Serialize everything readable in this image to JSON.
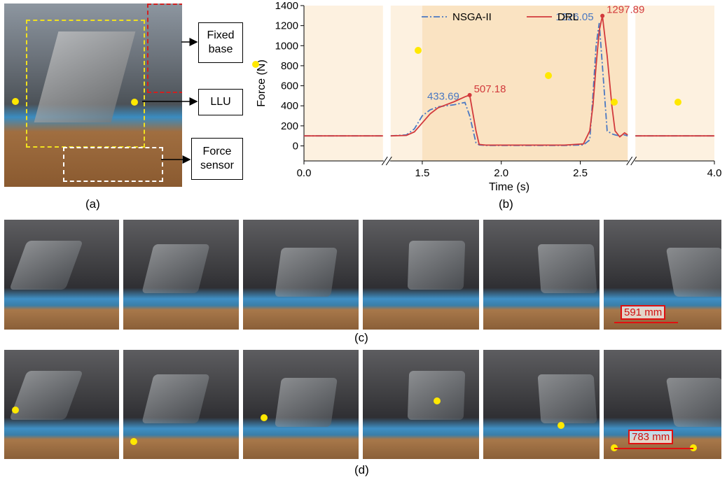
{
  "figure": {
    "callouts": [
      "Fixed base",
      "LLU",
      "Force sensor"
    ],
    "panel_labels": [
      "(a)",
      "(b)",
      "(c)",
      "(d)"
    ],
    "distance_labels": [
      "591 mm",
      "783 mm"
    ]
  },
  "chart_data": {
    "type": "line",
    "xlabel": "Time (s)",
    "ylabel": "Force (N)",
    "xlim": [
      0,
      4.0
    ],
    "xbreaks": [
      [
        0,
        0.5
      ],
      [
        1.3,
        2.8
      ],
      [
        3.5,
        4.0
      ]
    ],
    "highlight_xlim": [
      1.5,
      2.8
    ],
    "ylim": [
      -150,
      1400
    ],
    "xticks": [
      {
        "value": 0,
        "label": "0.0"
      },
      1.5,
      {
        "value": 2,
        "label": "2.0"
      },
      2.5,
      {
        "value": 4,
        "label": "4.0"
      }
    ],
    "yticks": [
      0,
      200,
      400,
      600,
      800,
      1000,
      1200,
      1400
    ],
    "legend": "top",
    "x": [
      0,
      0.5,
      0.9,
      1.3,
      1.4,
      1.45,
      1.5,
      1.55,
      1.6,
      1.7,
      1.77,
      1.8,
      1.84,
      1.86,
      1.9,
      2.0,
      2.4,
      2.52,
      2.56,
      2.58,
      2.6,
      2.62,
      2.64,
      2.67,
      2.7,
      2.72,
      2.75,
      2.78,
      2.8,
      3.2,
      3.5,
      4.0
    ],
    "series": [
      {
        "name": "NSGA-II",
        "color": "#4a78c2",
        "dash": "dashdot",
        "values": [
          100,
          100,
          null,
          100,
          110,
          170,
          300,
          360,
          390,
          410,
          433.69,
          300,
          30,
          10,
          5,
          5,
          5,
          10,
          60,
          500,
          1000,
          1226.05,
          800,
          150,
          120,
          110,
          100,
          110,
          100,
          null,
          100,
          100
        ]
      },
      {
        "name": "DRL",
        "color": "#d23a3c",
        "dash": "solid",
        "values": [
          100,
          100,
          null,
          100,
          105,
          140,
          230,
          320,
          380,
          440,
          490,
          507.18,
          150,
          15,
          8,
          8,
          8,
          20,
          150,
          400,
          800,
          1150,
          1297.89,
          900,
          400,
          150,
          90,
          130,
          110,
          null,
          100,
          100
        ]
      }
    ]
  }
}
